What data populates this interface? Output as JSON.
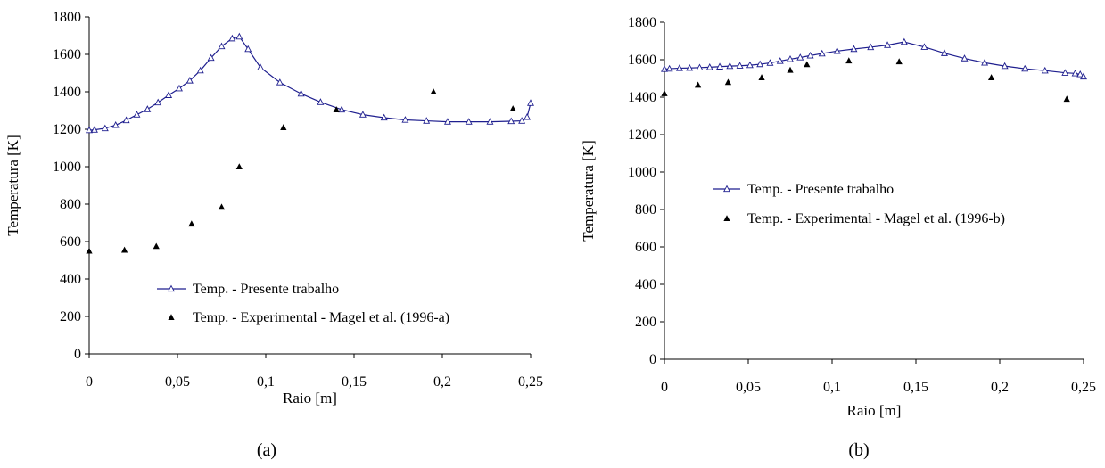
{
  "chart_data": [
    {
      "type": "line",
      "caption": "(a)",
      "xlabel": "Raio [m]",
      "ylabel": "Temperatura [K]",
      "xlim": [
        0,
        0.25
      ],
      "ylim": [
        0,
        1800
      ],
      "xticks": [
        0,
        0.05,
        0.1,
        0.15,
        0.2,
        0.25
      ],
      "xtick_labels": [
        "0",
        "0,05",
        "0,1",
        "0,15",
        "0,2",
        "0,25"
      ],
      "yticks": [
        0,
        200,
        400,
        600,
        800,
        1000,
        1200,
        1400,
        1600,
        1800
      ],
      "ytick_labels": [
        "0",
        "200",
        "400",
        "600",
        "800",
        "1000",
        "1200",
        "1400",
        "1600",
        "1800"
      ],
      "legend_position": "lower-center",
      "series": [
        {
          "name": "Temp. - Presente trabalho",
          "style": "line-open-triangle",
          "color": "#1f1f8f",
          "x": [
            0,
            0.003,
            0.009,
            0.015,
            0.021,
            0.027,
            0.033,
            0.039,
            0.045,
            0.051,
            0.057,
            0.063,
            0.069,
            0.075,
            0.081,
            0.085,
            0.09,
            0.097,
            0.108,
            0.12,
            0.131,
            0.143,
            0.155,
            0.167,
            0.179,
            0.191,
            0.203,
            0.215,
            0.227,
            0.239,
            0.245,
            0.248,
            0.25
          ],
          "y": [
            1195,
            1197,
            1205,
            1222,
            1248,
            1278,
            1307,
            1343,
            1382,
            1418,
            1460,
            1514,
            1581,
            1643,
            1685,
            1695,
            1628,
            1530,
            1450,
            1390,
            1345,
            1305,
            1278,
            1262,
            1250,
            1245,
            1240,
            1240,
            1240,
            1243,
            1245,
            1265,
            1340
          ]
        },
        {
          "name": "Temp. - Experimental - Magel et al. (1996-a)",
          "style": "marker-filled-triangle",
          "color": "#000000",
          "x": [
            0,
            0.02,
            0.038,
            0.058,
            0.075,
            0.085,
            0.11,
            0.14,
            0.195,
            0.24
          ],
          "y": [
            550,
            555,
            575,
            695,
            785,
            1000,
            1210,
            1305,
            1400,
            1310
          ]
        }
      ]
    },
    {
      "type": "line",
      "caption": "(b)",
      "xlabel": "Raio [m]",
      "ylabel": "Temperatura [K]",
      "xlim": [
        0,
        0.25
      ],
      "ylim": [
        0,
        1800
      ],
      "xticks": [
        0,
        0.05,
        0.1,
        0.15,
        0.2,
        0.25
      ],
      "xtick_labels": [
        "0",
        "0,05",
        "0,1",
        "0,15",
        "0,2",
        "0,25"
      ],
      "yticks": [
        0,
        200,
        400,
        600,
        800,
        1000,
        1200,
        1400,
        1600,
        1800
      ],
      "ytick_labels": [
        "0",
        "200",
        "400",
        "600",
        "800",
        "1000",
        "1200",
        "1400",
        "1600",
        "1800"
      ],
      "legend_position": "center-left",
      "series": [
        {
          "name": "Temp. - Presente trabalho",
          "style": "line-open-triangle",
          "color": "#1f1f8f",
          "x": [
            0,
            0.003,
            0.009,
            0.015,
            0.021,
            0.027,
            0.033,
            0.039,
            0.045,
            0.051,
            0.057,
            0.063,
            0.069,
            0.075,
            0.081,
            0.087,
            0.094,
            0.103,
            0.113,
            0.123,
            0.133,
            0.143,
            0.155,
            0.167,
            0.179,
            0.191,
            0.203,
            0.215,
            0.227,
            0.239,
            0.245,
            0.248,
            0.25
          ],
          "y": [
            1550,
            1552,
            1555,
            1556,
            1558,
            1560,
            1563,
            1566,
            1568,
            1571,
            1576,
            1583,
            1593,
            1603,
            1612,
            1622,
            1633,
            1646,
            1657,
            1667,
            1678,
            1695,
            1668,
            1635,
            1607,
            1584,
            1566,
            1552,
            1542,
            1530,
            1527,
            1522,
            1510
          ]
        },
        {
          "name": "Temp. - Experimental - Magel et al. (1996-b)",
          "style": "marker-filled-triangle",
          "color": "#000000",
          "x": [
            0,
            0.02,
            0.038,
            0.058,
            0.075,
            0.085,
            0.11,
            0.14,
            0.195,
            0.24
          ],
          "y": [
            1420,
            1465,
            1480,
            1505,
            1545,
            1575,
            1595,
            1590,
            1505,
            1390
          ]
        }
      ]
    }
  ]
}
